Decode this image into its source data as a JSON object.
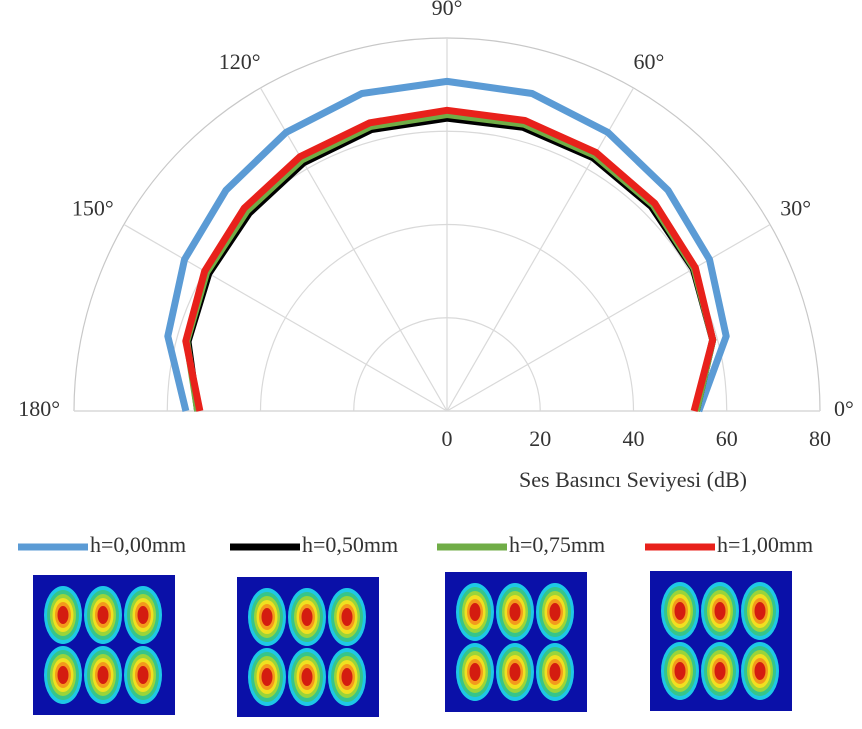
{
  "chart_data": {
    "type": "polar",
    "theta": [
      0,
      15,
      30,
      45,
      60,
      75,
      90,
      105,
      120,
      135,
      150,
      165,
      180
    ],
    "rlim": [
      0,
      80
    ],
    "rticks": [
      0,
      20,
      40,
      60,
      80
    ],
    "thetaticks": [
      {
        "value": 0,
        "label": "0°"
      },
      {
        "value": 30,
        "label": "30°"
      },
      {
        "value": 60,
        "label": "60°"
      },
      {
        "value": 90,
        "label": "90°"
      },
      {
        "value": 120,
        "label": "120°"
      },
      {
        "value": 150,
        "label": "150°"
      },
      {
        "value": 180,
        "label": "180°"
      }
    ],
    "r_label": "Ses Basıncı Seviyesi (dB)",
    "grid": true,
    "legend": "bottom",
    "series": [
      {
        "name": "h=0,00mm",
        "color": "#5b9bd5",
        "values": [
          54,
          62,
          65,
          67,
          69,
          70.5,
          70.7,
          70.5,
          69,
          67,
          65,
          62,
          56
        ]
      },
      {
        "name": "h=0,50mm",
        "color": "#000000",
        "values": [
          53.5,
          59,
          61,
          62,
          62.7,
          63,
          62.8,
          62.5,
          61.5,
          60,
          59,
          57.5,
          53.5
        ]
      },
      {
        "name": "h=0,75mm",
        "color": "#70ad47",
        "values": [
          53.5,
          59,
          61.2,
          62.5,
          63.3,
          63.7,
          63.6,
          63.2,
          62.2,
          60.7,
          59.5,
          57.8,
          53.5
        ]
      },
      {
        "name": "h=1,00mm",
        "color": "#e8211b",
        "values": [
          53,
          59,
          61.5,
          63,
          64,
          64.5,
          64.5,
          64,
          63,
          61.5,
          60,
          58,
          53
        ]
      }
    ]
  }
}
